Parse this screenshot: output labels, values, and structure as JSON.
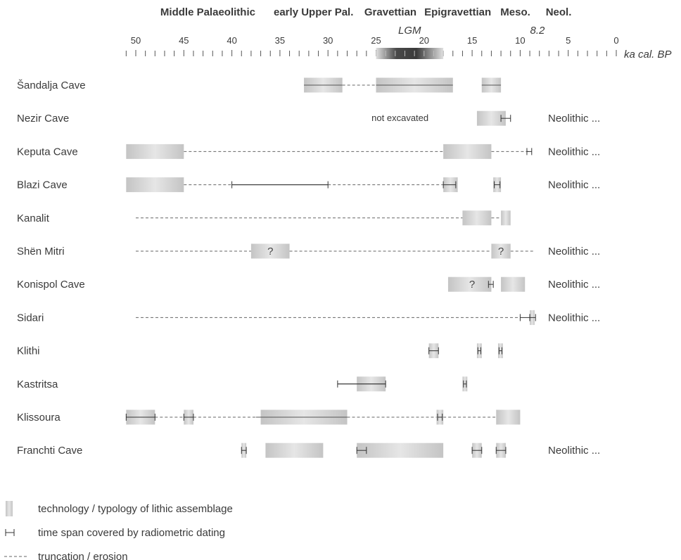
{
  "chart_data": {
    "type": "timeline",
    "axis": {
      "unit_label": "ka cal. BP",
      "min": 0,
      "max": 51,
      "reversed": true,
      "major_ticks": [
        50,
        45,
        40,
        35,
        30,
        25,
        20,
        15,
        10,
        5,
        0
      ],
      "minor_step": 1
    },
    "periods": [
      {
        "label": "Middle Palaeolithic",
        "center_ka": 42.5
      },
      {
        "label": "early Upper Pal.",
        "center_ka": 31.5
      },
      {
        "label": "Gravettian",
        "center_ka": 23.5
      },
      {
        "label": "Epigravettian",
        "center_ka": 16.5
      },
      {
        "label": "Meso.",
        "center_ka": 10.5
      },
      {
        "label": "Neol.",
        "center_ka": 6
      }
    ],
    "markers": [
      {
        "label": "LGM",
        "start_ka": 25,
        "end_ka": 18,
        "label_ka": 21.5
      },
      {
        "label": "8.2",
        "at_ka": 8.2
      }
    ],
    "sites": [
      {
        "name": "Šandalja Cave",
        "blocks": [
          {
            "start": 32.5,
            "end": 28.5
          },
          {
            "start": 25,
            "end": 17
          },
          {
            "start": 14,
            "end": 12
          }
        ],
        "dashed": [
          {
            "start": 28.5,
            "end": 25
          }
        ],
        "lines": [
          {
            "start": 32.5,
            "end": 28.5
          },
          {
            "start": 25,
            "end": 17
          },
          {
            "start": 14,
            "end": 12
          }
        ],
        "dates": [],
        "questions": [],
        "note": "",
        "after": ""
      },
      {
        "name": "Nezir Cave",
        "blocks": [
          {
            "start": 14.5,
            "end": 11.5
          }
        ],
        "dashed": [],
        "lines": [],
        "dates": [
          {
            "start": 12,
            "end": 11
          }
        ],
        "questions": [],
        "note": "not excavated",
        "note_ka": 22.5,
        "after": "Neolithic ..."
      },
      {
        "name": "Keputa Cave",
        "blocks": [
          {
            "start": 51,
            "end": 45
          },
          {
            "start": 18,
            "end": 13
          }
        ],
        "dashed": [
          {
            "start": 45,
            "end": 18
          },
          {
            "start": 13,
            "end": 9
          }
        ],
        "lines": [],
        "dates": [
          {
            "start": 9.3,
            "end": 8.8
          }
        ],
        "questions": [],
        "note": "",
        "after": "Neolithic ..."
      },
      {
        "name": "Blazi Cave",
        "blocks": [
          {
            "start": 51,
            "end": 45
          },
          {
            "start": 18,
            "end": 16.5
          },
          {
            "start": 12.8,
            "end": 12
          }
        ],
        "dashed": [
          {
            "start": 45,
            "end": 40
          },
          {
            "start": 30,
            "end": 18
          }
        ],
        "lines": [
          {
            "start": 40,
            "end": 30
          }
        ],
        "dates": [
          {
            "start": 40,
            "end": 30
          },
          {
            "start": 18,
            "end": 16.7
          },
          {
            "start": 12.7,
            "end": 12.1
          }
        ],
        "questions": [],
        "note": "",
        "after": "Neolithic ..."
      },
      {
        "name": "Kanalit",
        "blocks": [
          {
            "start": 16,
            "end": 13
          },
          {
            "start": 12,
            "end": 11
          }
        ],
        "dashed": [
          {
            "start": 50,
            "end": 16
          },
          {
            "start": 13,
            "end": 12
          }
        ],
        "lines": [],
        "dates": [],
        "questions": [],
        "note": "",
        "after": ""
      },
      {
        "name": "Shën Mitri",
        "blocks": [
          {
            "start": 38,
            "end": 34
          },
          {
            "start": 13,
            "end": 11
          }
        ],
        "dashed": [
          {
            "start": 50,
            "end": 38
          },
          {
            "start": 34,
            "end": 13
          },
          {
            "start": 11,
            "end": 8.5
          }
        ],
        "lines": [],
        "dates": [],
        "questions": [
          {
            "at": 36
          },
          {
            "at": 12
          }
        ],
        "note": "",
        "after": "Neolithic ..."
      },
      {
        "name": "Konispol Cave",
        "blocks": [
          {
            "start": 17.5,
            "end": 13
          },
          {
            "start": 12,
            "end": 9.5
          }
        ],
        "dashed": [],
        "lines": [],
        "dates": [
          {
            "start": 13.3,
            "end": 12.8
          }
        ],
        "questions": [
          {
            "at": 15
          }
        ],
        "note": "",
        "after": "Neolithic ..."
      },
      {
        "name": "Sidari",
        "blocks": [
          {
            "start": 9,
            "end": 8.5
          }
        ],
        "dashed": [
          {
            "start": 50,
            "end": 10
          }
        ],
        "lines": [],
        "dates": [
          {
            "start": 10,
            "end": 9
          },
          {
            "start": 9,
            "end": 8.4
          }
        ],
        "questions": [],
        "note": "",
        "after": "Neolithic ..."
      },
      {
        "name": "Klithi",
        "blocks": [
          {
            "start": 19.5,
            "end": 18.5
          },
          {
            "start": 14.5,
            "end": 14
          },
          {
            "start": 12.3,
            "end": 11.8
          }
        ],
        "dashed": [],
        "lines": [],
        "dates": [
          {
            "start": 19.5,
            "end": 18.5
          },
          {
            "start": 14.4,
            "end": 14.1
          },
          {
            "start": 12.2,
            "end": 11.9
          }
        ],
        "questions": [],
        "note": "",
        "after": ""
      },
      {
        "name": "Kastritsa",
        "blocks": [
          {
            "start": 27,
            "end": 24
          },
          {
            "start": 16,
            "end": 15.5
          }
        ],
        "dashed": [],
        "lines": [
          {
            "start": 29,
            "end": 24
          }
        ],
        "dates": [
          {
            "start": 29,
            "end": 24
          },
          {
            "start": 15.9,
            "end": 15.6
          }
        ],
        "questions": [],
        "note": "",
        "after": ""
      },
      {
        "name": "Klissoura",
        "blocks": [
          {
            "start": 51,
            "end": 48
          },
          {
            "start": 45,
            "end": 44
          },
          {
            "start": 37,
            "end": 28
          },
          {
            "start": 18.7,
            "end": 18
          },
          {
            "start": 12.5,
            "end": 10
          }
        ],
        "dashed": [
          {
            "start": 48,
            "end": 45
          },
          {
            "start": 44,
            "end": 37
          },
          {
            "start": 28,
            "end": 18.7
          },
          {
            "start": 18,
            "end": 12.5
          }
        ],
        "lines": [
          {
            "start": 51,
            "end": 48
          },
          {
            "start": 37.5,
            "end": 28
          }
        ],
        "dates": [
          {
            "start": 51,
            "end": 48
          },
          {
            "start": 45,
            "end": 44
          },
          {
            "start": 18.6,
            "end": 18.1
          }
        ],
        "questions": [],
        "note": "",
        "after": ""
      },
      {
        "name": "Franchti Cave",
        "blocks": [
          {
            "start": 39,
            "end": 38.5
          },
          {
            "start": 36.5,
            "end": 30.5
          },
          {
            "start": 27,
            "end": 18
          },
          {
            "start": 15,
            "end": 14
          },
          {
            "start": 12.5,
            "end": 11.5
          }
        ],
        "dashed": [],
        "lines": [],
        "dates": [
          {
            "start": 39,
            "end": 38.5
          },
          {
            "start": 27,
            "end": 26
          },
          {
            "start": 15,
            "end": 14
          },
          {
            "start": 12.5,
            "end": 11.5
          }
        ],
        "questions": [],
        "note": "",
        "after": "Neolithic ..."
      }
    ],
    "legend": [
      {
        "kind": "block",
        "label": "technology / typology of lithic assemblage"
      },
      {
        "kind": "date",
        "label": "time span covered by radiometric dating"
      },
      {
        "kind": "dashed",
        "label": "truncation / erosion"
      }
    ]
  }
}
